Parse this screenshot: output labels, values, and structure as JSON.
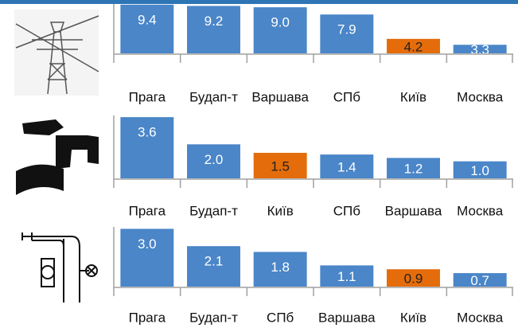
{
  "chart_data": [
    {
      "type": "bar",
      "categories": [
        "Прага",
        "Будап-т",
        "Варшава",
        "СПб",
        "Київ",
        "Москва"
      ],
      "values": [
        9.4,
        9.2,
        9.0,
        7.9,
        4.2,
        3.3
      ],
      "value_labels": [
        "9.4",
        "9.2",
        "9.0",
        "7.9",
        "4.2",
        "3.3"
      ],
      "colors": [
        "#4a86c8",
        "#4a86c8",
        "#4a86c8",
        "#4a86c8",
        "#e46c0a",
        "#4a86c8"
      ],
      "ylim": [
        2,
        9.5
      ]
    },
    {
      "type": "bar",
      "categories": [
        "Прага",
        "Будап-т",
        "Київ",
        "СПб",
        "Варшава",
        "Москва"
      ],
      "values": [
        3.6,
        2.0,
        1.5,
        1.4,
        1.2,
        1.0
      ],
      "value_labels": [
        "3.6",
        "2.0",
        "1.5",
        "1.4",
        "1.2",
        "1.0"
      ],
      "colors": [
        "#4a86c8",
        "#4a86c8",
        "#e46c0a",
        "#4a86c8",
        "#4a86c8",
        "#4a86c8"
      ],
      "ylim": [
        0,
        3.7
      ]
    },
    {
      "type": "bar",
      "categories": [
        "Прага",
        "Будап-т",
        "СПб",
        "Варшава",
        "Київ",
        "Москва"
      ],
      "values": [
        3.0,
        2.1,
        1.8,
        1.1,
        0.9,
        0.7
      ],
      "value_labels": [
        "3.0",
        "2.1",
        "1.8",
        "1.1",
        "0.9",
        "0.7"
      ],
      "colors": [
        "#4a86c8",
        "#4a86c8",
        "#4a86c8",
        "#4a86c8",
        "#e46c0a",
        "#4a86c8"
      ],
      "ylim": [
        0,
        3.1
      ]
    }
  ]
}
